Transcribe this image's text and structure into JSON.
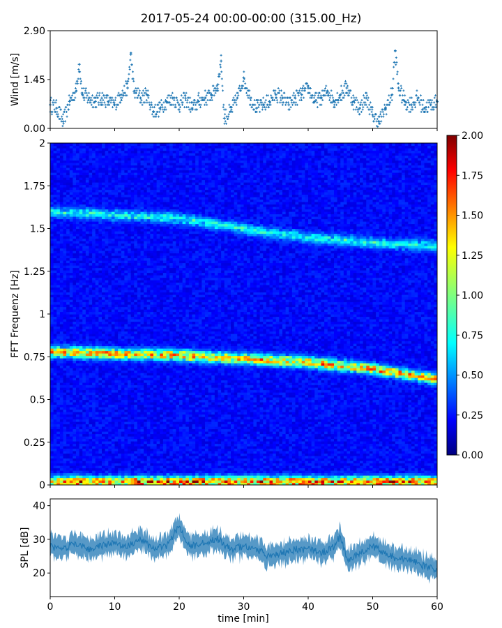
{
  "figure": {
    "title": "2017-05-24 00:00-00:00 (315.00_Hz)"
  },
  "chart_data": [
    {
      "type": "scatter",
      "name": "wind",
      "ylabel": "Wind [m/s]",
      "xlim": [
        0,
        60
      ],
      "ylim": [
        0,
        2.9
      ],
      "yticks": [
        0.0,
        1.45,
        2.9
      ],
      "ytick_labels": [
        "0.00",
        "1.45",
        "2.90"
      ],
      "x_tick_labels_visible": false,
      "marker": "+",
      "color": "#1f77b4",
      "x": [
        0,
        1,
        2,
        3,
        4,
        4.5,
        5,
        6,
        7,
        8,
        9,
        10,
        11,
        12,
        12.5,
        13,
        14,
        15,
        16,
        17,
        18,
        19,
        20,
        21,
        22,
        23,
        24,
        25,
        26,
        26.5,
        27,
        28,
        29,
        30,
        31,
        32,
        33,
        34,
        35,
        36,
        37,
        38,
        39,
        40,
        41,
        42,
        43,
        44,
        45,
        46,
        47,
        48,
        49,
        50,
        51,
        52,
        53,
        53.5,
        54,
        55,
        56,
        57,
        58,
        59,
        60
      ],
      "y": [
        0.7,
        0.6,
        0.2,
        0.8,
        1.1,
        1.9,
        1.0,
        0.9,
        0.8,
        0.9,
        0.8,
        0.7,
        1.0,
        1.2,
        2.2,
        1.1,
        0.9,
        1.0,
        0.5,
        0.6,
        0.8,
        0.9,
        0.7,
        0.9,
        0.6,
        0.8,
        0.9,
        1.0,
        1.3,
        2.0,
        0.3,
        0.5,
        0.9,
        1.5,
        0.9,
        0.6,
        0.7,
        0.8,
        1.0,
        0.9,
        0.7,
        0.9,
        1.0,
        1.2,
        0.8,
        0.9,
        1.1,
        0.8,
        1.0,
        1.2,
        0.8,
        0.6,
        0.9,
        0.4,
        0.2,
        0.6,
        1.0,
        2.3,
        1.2,
        0.8,
        0.7,
        0.9,
        0.6,
        0.7,
        0.8
      ]
    },
    {
      "type": "heatmap",
      "name": "spectrogram",
      "ylabel": "FFT Frequenz [Hz]",
      "xlim": [
        0,
        60
      ],
      "ylim": [
        0,
        2
      ],
      "yticks": [
        0,
        0.25,
        0.5,
        0.75,
        1,
        1.25,
        1.5,
        1.75,
        2
      ],
      "ytick_labels": [
        "0",
        "0.25",
        "0.5",
        "0.75",
        "1",
        "1.25",
        "1.5",
        "1.75",
        "2"
      ],
      "colormap": "jet",
      "colorbar": {
        "range": [
          0.0,
          2.0
        ],
        "ticks": [
          "0.00",
          "0.25",
          "0.50",
          "0.75",
          "1.00",
          "1.25",
          "1.50",
          "1.75",
          "2.00"
        ],
        "tick_values": [
          0.0,
          0.25,
          0.5,
          0.75,
          1.0,
          1.25,
          1.5,
          1.75,
          2.0
        ]
      },
      "bands": [
        {
          "label": "low",
          "x": [
            0,
            60
          ],
          "freq": [
            0.02,
            0.02
          ],
          "intensity": 1.3
        },
        {
          "label": "main",
          "x": [
            0,
            10,
            20,
            30,
            40,
            50,
            60
          ],
          "freq": [
            0.78,
            0.77,
            0.76,
            0.74,
            0.72,
            0.68,
            0.62
          ],
          "intensity": 1.1
        },
        {
          "label": "upper",
          "x": [
            0,
            10,
            20,
            30,
            40,
            50,
            60
          ],
          "freq": [
            1.6,
            1.58,
            1.56,
            1.5,
            1.45,
            1.42,
            1.4
          ],
          "intensity": 0.5
        }
      ]
    },
    {
      "type": "line",
      "name": "spl",
      "ylabel": "SPL [dB]",
      "xlabel": "time [min]",
      "xlim": [
        0,
        60
      ],
      "ylim": [
        13,
        42
      ],
      "yticks": [
        20,
        30,
        40
      ],
      "ytick_labels": [
        "20",
        "30",
        "40"
      ],
      "xticks": [
        0,
        10,
        20,
        30,
        40,
        50,
        60
      ],
      "xtick_labels": [
        "0",
        "10",
        "20",
        "30",
        "40",
        "50",
        "60"
      ],
      "color": "#1f77b4",
      "x": [
        0,
        2,
        4,
        6,
        8,
        10,
        12,
        14,
        16,
        18,
        19,
        20,
        21,
        22,
        24,
        26,
        28,
        30,
        32,
        34,
        36,
        38,
        40,
        42,
        44,
        45,
        46,
        48,
        50,
        52,
        54,
        56,
        58,
        60
      ],
      "y": [
        28,
        27,
        29,
        27,
        28,
        29,
        28,
        30,
        27,
        28,
        31,
        34,
        30,
        28,
        29,
        30,
        27,
        28,
        27,
        25,
        26,
        27,
        27,
        26,
        28,
        31,
        24,
        26,
        28,
        26,
        24,
        24,
        22,
        21
      ],
      "band_halfwidth": 3
    }
  ]
}
